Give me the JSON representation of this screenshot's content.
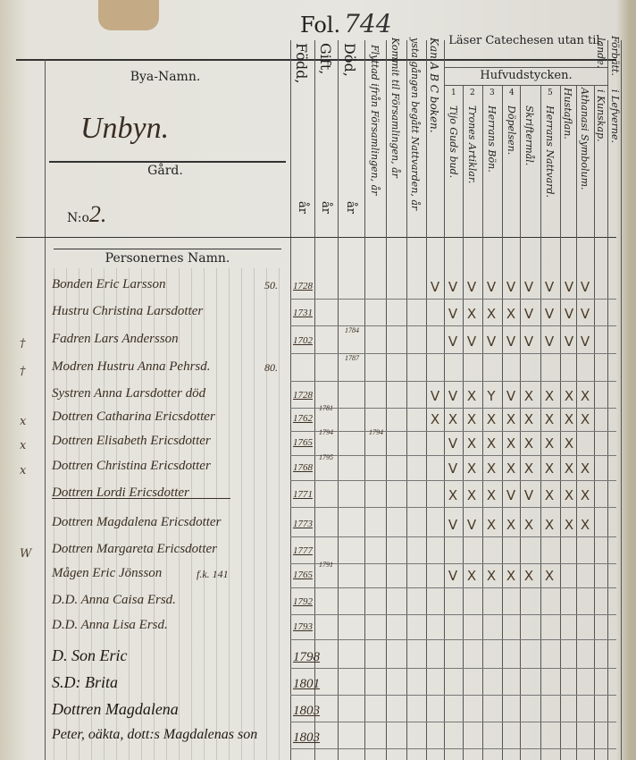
{
  "folio": {
    "label": "Fol.",
    "number": "744"
  },
  "left_header": {
    "village_label": "Bya-Namn.",
    "village": "Unbyn.",
    "farm_label": "Gård.",
    "number_label": "N:o",
    "number": "2.",
    "persons_label": "Personernes Namn."
  },
  "columns": {
    "born": "Född,",
    "married": "Gift,",
    "dead": "Död,",
    "year": "år",
    "moved_out": "Flyttad ifrån Församlingen, år",
    "moved_in": "Kommit til Församlingen, år",
    "first_communion": "ysta gången begått Nattvarden, år",
    "abc": "Kan A B C boken.",
    "catechism_title": "Läser Catechesen utan til.",
    "main_parts": "Hufvudstycken.",
    "parts": [
      {
        "num": "1",
        "label": "Tijo Guds bud."
      },
      {
        "num": "2",
        "label": "Trones Artiklar."
      },
      {
        "num": "3",
        "label": "Herrans Bön."
      },
      {
        "num": "4",
        "label": "Döpelsen."
      },
      {
        "num": "",
        "label": "Skriftermål."
      },
      {
        "num": "5",
        "label": "Herrans Nattvard."
      }
    ],
    "house_table": "Hustaflan.",
    "athanasian": "Athanasi Symbolum.",
    "knowledge": "i Kunskap.",
    "conduct": "i Lefverne.",
    "progress_a": "lande.",
    "progress_b": "Förbätt."
  },
  "rows": [
    {
      "margin": "",
      "name": "Bonden Eric Larsson",
      "age": "50.",
      "born": "1728",
      "marks": [
        "V",
        "V",
        "V",
        "V",
        "V",
        "V",
        "V",
        "V",
        "V"
      ]
    },
    {
      "margin": "",
      "name": "Hustru Christina Larsdotter",
      "age": "",
      "born": "1731",
      "marks": [
        "V",
        "X",
        "X",
        "X",
        "V",
        "V",
        "V",
        "V"
      ]
    },
    {
      "margin": "†",
      "name": "Fadren Lars Andersson",
      "age": "",
      "born": "1702",
      "dead": "1784",
      "marks": [
        "V",
        "V",
        "V",
        "V",
        "V",
        "V",
        "V",
        "V"
      ]
    },
    {
      "margin": "†",
      "name": "Modren Hustru Anna Pehrsd.",
      "age": "80.",
      "born": "",
      "dead": "1787",
      "marks": []
    },
    {
      "margin": "",
      "name": "Systren Anna Larsdotter död",
      "age": "",
      "born": "1728",
      "marks": [
        "V",
        "V",
        "X",
        "Y",
        "V",
        "X",
        "X",
        "X",
        "X"
      ]
    },
    {
      "margin": "x",
      "name": "Dottren Catharina Ericsdotter",
      "age": "",
      "born": "1762",
      "married": "1781",
      "marks": [
        "X",
        "X",
        "X",
        "X",
        "X",
        "X",
        "X",
        "X",
        "X"
      ]
    },
    {
      "margin": "x",
      "name": "Dottren Elisabeth Ericsdotter",
      "age": "",
      "born": "1765",
      "married": "1794",
      "moved": "1794",
      "marks": [
        "V",
        "X",
        "X",
        "X",
        "X",
        "X",
        "X"
      ]
    },
    {
      "margin": "x",
      "name": "Dottren Christina Ericsdotter",
      "age": "",
      "born": "1768",
      "married": "1795",
      "marks": [
        "V",
        "X",
        "X",
        "X",
        "X",
        "X",
        "X",
        "X"
      ]
    },
    {
      "margin": "",
      "name": "Dottren Lordi Ericsdotter",
      "age": "",
      "born": "1771",
      "marks": [
        "X",
        "X",
        "X",
        "V",
        "V",
        "X",
        "X",
        "X"
      ]
    },
    {
      "margin": "",
      "name": "Dottren Magdalena Ericsdotter",
      "age": "",
      "born": "1773",
      "marks": [
        "V",
        "V",
        "X",
        "X",
        "X",
        "X",
        "X",
        "X"
      ]
    },
    {
      "margin": "W",
      "name": "Dottren Margareta Ericsdotter",
      "age": "",
      "born": "1777",
      "marks": []
    },
    {
      "margin": "",
      "name": "Mågen Eric Jönsson",
      "age": "f.k. 141",
      "born": "1765",
      "married": "1791",
      "marks": [
        "V",
        "X",
        "X",
        "X",
        "X",
        "X"
      ]
    },
    {
      "margin": "",
      "name": "D.D. Anna Caisa Ersd.",
      "age": "",
      "born": "1792",
      "marks": []
    },
    {
      "margin": "",
      "name": "D.D. Anna Lisa Ersd.",
      "age": "",
      "born": "1793",
      "marks": []
    },
    {
      "margin": "",
      "name": "D. Son Eric",
      "age": "",
      "born": "1798",
      "marks": []
    },
    {
      "margin": "",
      "name": "S.D: Brita",
      "age": "",
      "born": "1801",
      "marks": []
    },
    {
      "margin": "",
      "name": "Dottren Magdalena",
      "age": "",
      "born": "1803",
      "marks": []
    },
    {
      "margin": "",
      "name": "Peter, oäkta, dott:s Magdalenas son",
      "age": "",
      "born": "1803",
      "marks": []
    }
  ]
}
